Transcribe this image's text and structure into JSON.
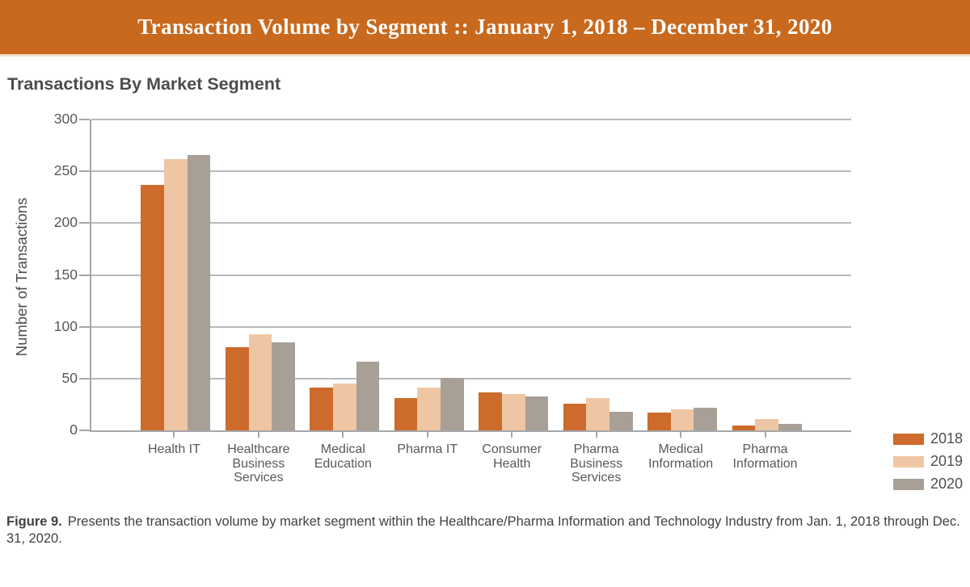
{
  "banner": {
    "title": "Transaction Volume by Segment :: January 1, 2018 – December 31, 2020",
    "bg_color": "#C8691E"
  },
  "chart": {
    "title": "Transactions By Market Segment",
    "ylabel": "Number of Transactions"
  },
  "chart_data": {
    "type": "bar",
    "title": "Transactions By Market Segment",
    "xlabel": "",
    "ylabel": "Number of Transactions",
    "categories": [
      "Health IT",
      "Healthcare Business Services",
      "Medical Education",
      "Pharma IT",
      "Consumer Health",
      "Pharma Business Services",
      "Medical Information",
      "Pharma Information"
    ],
    "series": [
      {
        "name": "2018",
        "color": "#CC6B2B",
        "values": [
          237,
          80,
          41,
          31,
          37,
          26,
          17,
          5
        ]
      },
      {
        "name": "2019",
        "color": "#EFC6A3",
        "values": [
          262,
          93,
          45,
          41,
          35,
          31,
          20,
          11
        ]
      },
      {
        "name": "2020",
        "color": "#A89F96",
        "values": [
          266,
          85,
          66,
          51,
          33,
          18,
          22,
          6
        ]
      }
    ],
    "ylim": [
      0,
      300
    ],
    "yticks": [
      0,
      50,
      100,
      150,
      200,
      250,
      300
    ],
    "grid": true,
    "legend_position": "bottom-right",
    "colors": {
      "gridline": "#b7b9bb",
      "axis": "#a4a6a9",
      "tick_text": "#57585a"
    }
  },
  "caption": {
    "label": "Figure 9.",
    "text": "Presents the transaction volume by market segment within the Healthcare/Pharma Information and Technology Industry from Jan. 1, 2018 through Dec. 31, 2020."
  }
}
